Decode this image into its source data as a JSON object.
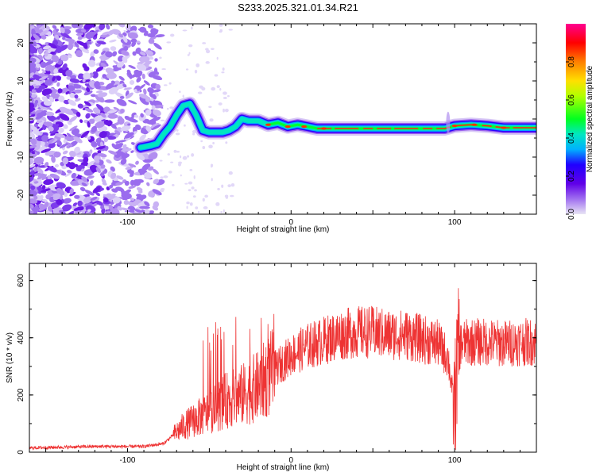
{
  "page": {
    "title": "S233.2025.321.01.34.R21"
  },
  "chart_data": [
    {
      "type": "heatmap",
      "name": "spectrogram",
      "xlabel": "Height of straight line (km)",
      "ylabel": "Frequency (Hz)",
      "xlim": [
        -160,
        150
      ],
      "ylim": [
        -25,
        25
      ],
      "xticks": [
        -100,
        0,
        100
      ],
      "yticks": [
        -20,
        -10,
        0,
        10,
        20
      ],
      "ridge": {
        "x": [
          -92,
          -86,
          -82,
          -78,
          -74,
          -70,
          -66,
          -62,
          -58,
          -54,
          -50,
          -46,
          -42,
          -38,
          -34,
          -30,
          -26,
          -20,
          -14,
          -8,
          -2,
          4,
          10,
          16,
          22,
          30,
          40,
          60,
          80,
          94,
          100,
          110,
          120,
          130,
          140,
          150
        ],
        "y": [
          -7.5,
          -7,
          -6.5,
          -4,
          -2,
          1,
          3.5,
          4,
          1,
          -3,
          -3.5,
          -3.5,
          -3.5,
          -3,
          -2,
          0,
          -0.5,
          -0.5,
          -1.5,
          -1,
          -2,
          -1.5,
          -2,
          -2.5,
          -2.5,
          -2.5,
          -2.5,
          -2.5,
          -2.5,
          -2.5,
          -1.8,
          -1.5,
          -1.8,
          -2.3,
          -2.3,
          -2.3
        ]
      },
      "colorbar": {
        "label": "Normalized spectral amplitude",
        "ticks": [
          "0.0",
          "0.2",
          "0.4",
          "0.6",
          "0.8"
        ],
        "range": [
          0,
          1
        ],
        "colors": [
          "#c8c8f0",
          "#a060f0",
          "#6a00e8",
          "#2a00ff",
          "#00aaff",
          "#00e0c0",
          "#00ff00",
          "#c8ff00",
          "#ffd400",
          "#ff7a00",
          "#ff0000",
          "#ff0088"
        ]
      }
    },
    {
      "type": "line",
      "name": "snr",
      "xlabel": "Height of straight line (km)",
      "ylabel": "SNR (10 * v/v)",
      "xlim": [
        -160,
        150
      ],
      "ylim": [
        0,
        660
      ],
      "xticks": [
        -100,
        0,
        100
      ],
      "yticks": [
        0,
        200,
        400,
        600
      ],
      "color": "#ee3333",
      "envelope": {
        "x": [
          -160,
          -120,
          -90,
          -78,
          -72,
          -66,
          -60,
          -50,
          -40,
          -30,
          -20,
          -10,
          0,
          10,
          20,
          30,
          40,
          50,
          60,
          70,
          80,
          90,
          96,
          100,
          102,
          104,
          110,
          120,
          130,
          140,
          150
        ],
        "y": [
          15,
          20,
          20,
          30,
          60,
          90,
          110,
          140,
          180,
          200,
          230,
          290,
          340,
          370,
          390,
          410,
          420,
          420,
          410,
          410,
          395,
          380,
          330,
          150,
          350,
          380,
          385,
          385,
          380,
          385,
          385
        ]
      }
    }
  ]
}
